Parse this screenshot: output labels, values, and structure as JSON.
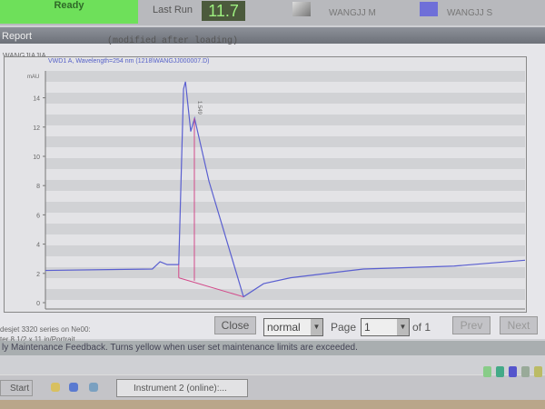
{
  "status": {
    "ready_label": "Ready",
    "last_run_label": "Last Run",
    "last_run_value": "11.7",
    "operator": "WANGJJ M",
    "sequence": "WANGJJ S"
  },
  "window": {
    "title": "Report"
  },
  "report": {
    "modified_note": "(modified after loading)",
    "sample_name": "WANGJIAJIA",
    "signal_title": "VWD1 A, Wavelength=254 nm (1218\\WANGJJ000007.D)"
  },
  "chart_data": {
    "type": "line",
    "ylabel": "mAU",
    "ylim": [
      -0.3,
      16
    ],
    "yticks": [
      0,
      2,
      4,
      6,
      8,
      10,
      12,
      14
    ],
    "grid": false,
    "x": [
      0,
      22.3,
      23.9,
      25.4,
      27.8,
      28.8,
      29.2,
      30.3,
      31.1,
      34.1,
      41.3,
      45.5,
      51.1,
      66.3,
      85.2,
      100
    ],
    "series": [
      {
        "values": [
          2.2,
          2.3,
          2.8,
          2.6,
          2.6,
          14.6,
          15.1,
          11.7,
          12.6,
          8.3,
          0.4,
          1.3,
          1.7,
          2.3,
          2.5,
          2.9
        ]
      }
    ],
    "peak_labels": [
      "1.549"
    ],
    "color": "#5a5fd0",
    "baseline_color": "#d24a8a"
  },
  "footer": {
    "line1": "desjet 3320 series on Ne00:",
    "line2": "ter 8 1/2 x 11 in/Portrait",
    "close": "Close",
    "zoom_value": "normal",
    "page_label": "Page",
    "page_value": "1",
    "of_label": "of 1",
    "prev": "Prev",
    "next": "Next"
  },
  "maintenance": "ly Maintenance Feedback. Turns yellow when user set maintenance limits are exceeded.",
  "taskbar": {
    "start": "Start",
    "task": "Instrument 2 (online):..."
  }
}
